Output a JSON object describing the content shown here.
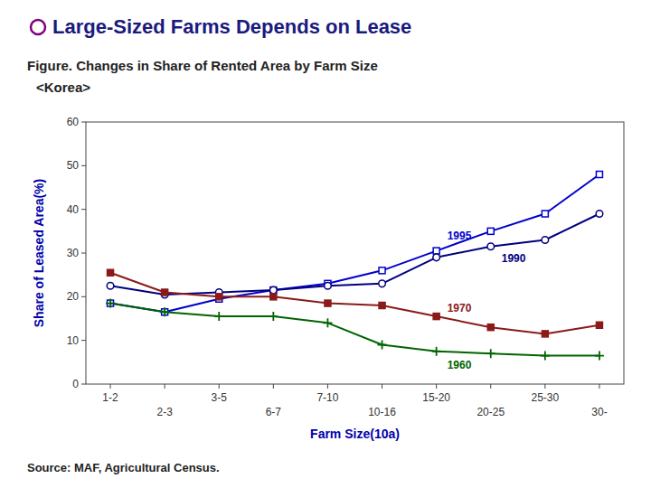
{
  "chart_data": {
    "type": "line",
    "title": "Large-Sized Farms Depends on Lease",
    "subtitle": [
      "Figure.  Changes in Share of Rented Area by Farm Size",
      "<Korea>"
    ],
    "source": "Source: MAF, Agricultural Census.",
    "x_label": "Farm Size(10a)",
    "y_label": "Share of Leased Area(%)",
    "categories": [
      "1-2",
      "2-3",
      "3-5",
      "6-7",
      "7-10",
      "10-16",
      "15-20",
      "20-25",
      "25-30",
      "30-"
    ],
    "series": [
      {
        "name": "1995",
        "color": "#0000cc",
        "marker": "square-open",
        "values": [
          18.5,
          16.5,
          19.5,
          21.5,
          23.0,
          26.0,
          30.5,
          35.0,
          39.0,
          48.0
        ]
      },
      {
        "name": "1990",
        "color": "#000080",
        "marker": "circle-open",
        "values": [
          22.5,
          20.5,
          21.0,
          21.5,
          22.5,
          23.0,
          29.0,
          31.5,
          33.0,
          39.0
        ]
      },
      {
        "name": "1970",
        "color": "#8b1a1a",
        "marker": "square",
        "values": [
          25.5,
          21.0,
          20.0,
          20.0,
          18.5,
          18.0,
          15.5,
          13.0,
          11.5,
          13.5
        ]
      },
      {
        "name": "1960",
        "color": "#006400",
        "marker": "plus",
        "values": [
          18.5,
          16.5,
          15.5,
          15.5,
          14.0,
          9.0,
          7.5,
          7.0,
          6.5,
          6.5
        ]
      }
    ],
    "ylim": [
      0,
      60
    ],
    "yticks": [
      0,
      10,
      20,
      30,
      40,
      50,
      60
    ],
    "grid": false
  }
}
